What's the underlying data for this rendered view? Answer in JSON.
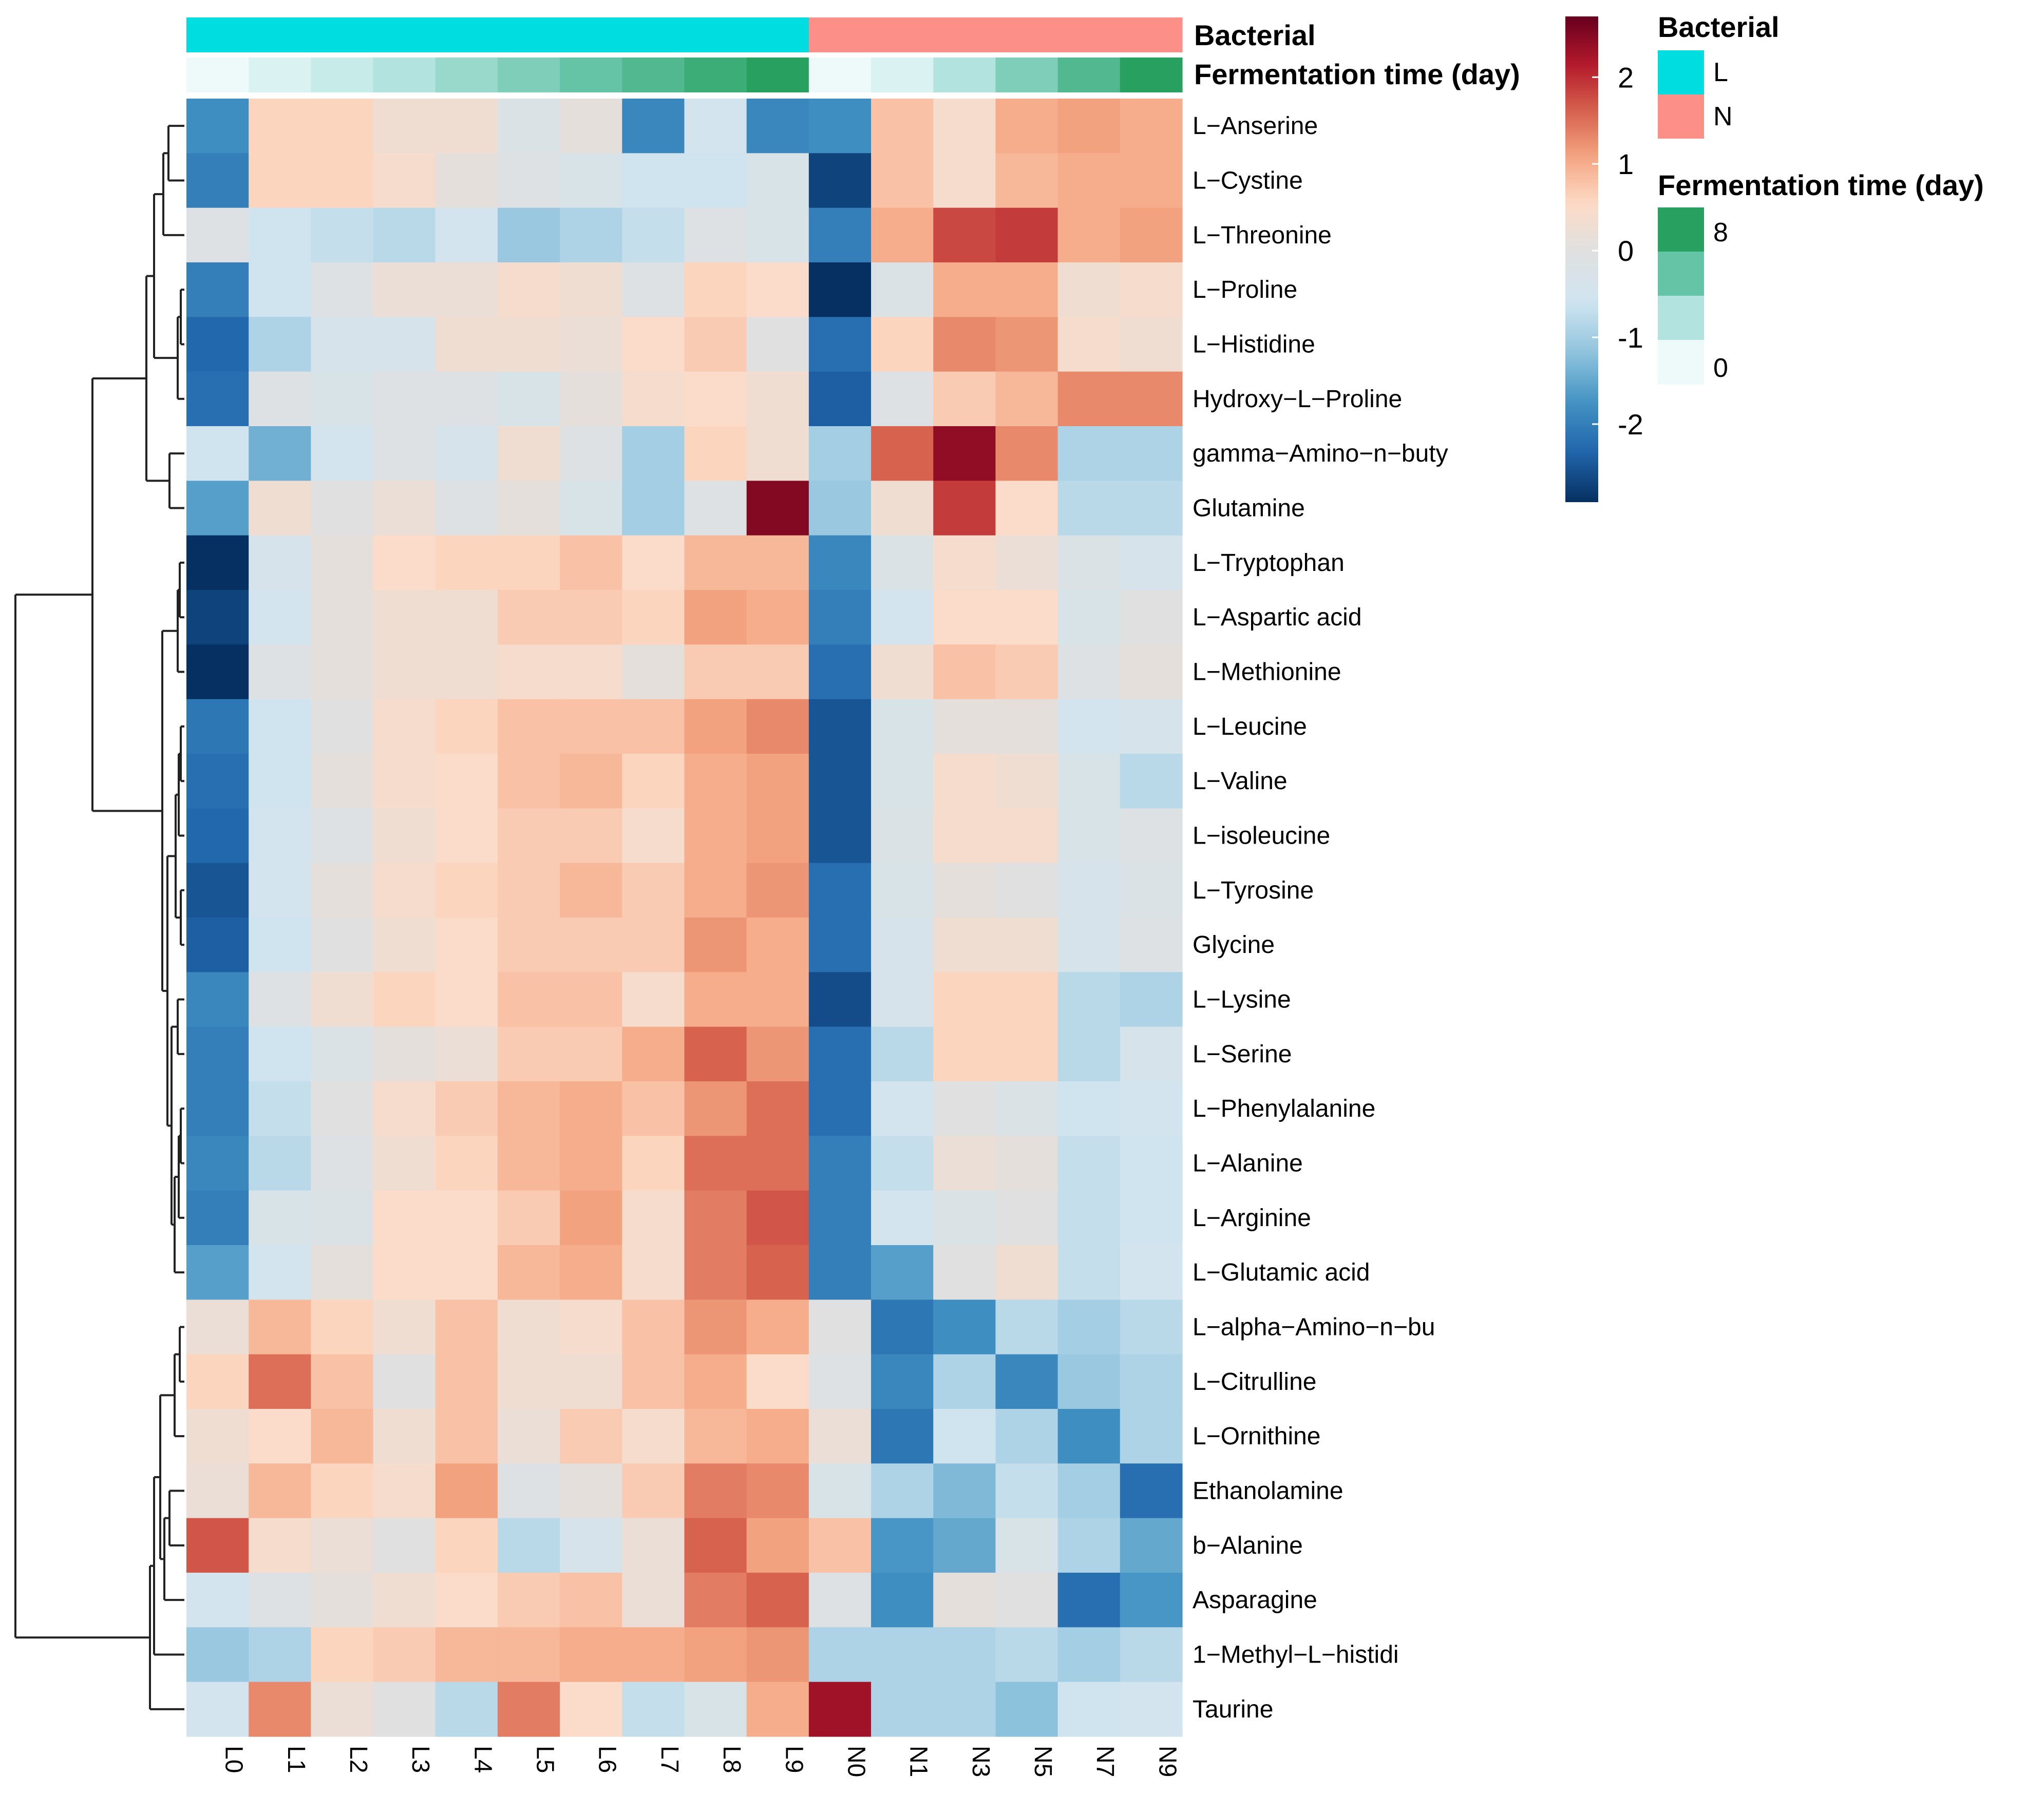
{
  "chart_data": {
    "type": "heatmap",
    "columns": [
      "L0",
      "L1",
      "L2",
      "L3",
      "L4",
      "L5",
      "L6",
      "L7",
      "L8",
      "L9",
      "N0",
      "N1",
      "N3",
      "N5",
      "N7",
      "N9"
    ],
    "rows": [
      "L−Anserine",
      "L−Cystine",
      "L−Threonine",
      "L−Proline",
      "L−Histidine",
      "Hydroxy−L−Proline",
      "gamma−Amino−n−buty",
      "Glutamine",
      "L−Tryptophan",
      "L−Aspartic acid",
      "L−Methionine",
      "L−Leucine",
      "L−Valine",
      "L−isoleucine",
      "L−Tyrosine",
      "Glycine",
      "L−Lysine",
      "L−Serine",
      "L−Phenylalanine",
      "L−Alanine",
      "L−Arginine",
      "L−Glutamic acid",
      "L−alpha−Amino−n−bu",
      "L−Citrulline",
      "L−Ornithine",
      "Ethanolamine",
      "b−Alanine",
      "Asparagine",
      "1−Methyl−L−histidi",
      "Taurine"
    ],
    "values": [
      [
        -1.8,
        0.6,
        0.6,
        0.3,
        0.3,
        -0.2,
        0.1,
        -1.9,
        -0.5,
        -1.9,
        -1.8,
        0.8,
        0.4,
        1.0,
        1.1,
        1.0
      ],
      [
        -2.0,
        0.6,
        0.6,
        0.4,
        0.1,
        -0.1,
        -0.3,
        -0.6,
        -0.6,
        -0.3,
        -2.7,
        0.8,
        0.4,
        0.9,
        1.0,
        1.0
      ],
      [
        -0.1,
        -0.6,
        -0.7,
        -0.8,
        -0.5,
        -1.1,
        -0.9,
        -0.7,
        -0.1,
        -0.3,
        -2.0,
        1.0,
        1.8,
        1.9,
        1.0,
        1.1
      ],
      [
        -2.0,
        -0.6,
        -0.1,
        0.2,
        0.2,
        0.4,
        0.3,
        -0.1,
        0.6,
        0.5,
        -2.9,
        -0.2,
        1.0,
        1.0,
        0.3,
        0.4
      ],
      [
        -2.3,
        -0.9,
        -0.4,
        -0.4,
        0.3,
        0.3,
        0.2,
        0.5,
        0.7,
        0.0,
        -2.2,
        0.6,
        1.3,
        1.2,
        0.4,
        0.3
      ],
      [
        -2.2,
        -0.1,
        -0.3,
        -0.1,
        -0.1,
        -0.3,
        0.1,
        0.4,
        0.5,
        0.3,
        -2.4,
        -0.1,
        0.7,
        0.9,
        1.3,
        1.3
      ],
      [
        -0.6,
        -1.4,
        -0.5,
        -0.1,
        -0.4,
        0.3,
        -0.1,
        -1.0,
        0.6,
        0.3,
        -1.0,
        1.6,
        2.4,
        1.3,
        -0.9,
        -0.9
      ],
      [
        -1.6,
        0.3,
        0.0,
        0.2,
        -0.1,
        0.1,
        -0.3,
        -1.0,
        -0.1,
        2.5,
        -1.1,
        0.3,
        1.9,
        0.5,
        -0.8,
        -0.8
      ],
      [
        -2.9,
        -0.4,
        0.1,
        0.5,
        0.6,
        0.6,
        0.8,
        0.5,
        0.9,
        0.9,
        -1.9,
        -0.2,
        0.4,
        0.2,
        -0.2,
        -0.4
      ],
      [
        -2.7,
        -0.5,
        0.1,
        0.3,
        0.3,
        0.7,
        0.7,
        0.6,
        1.1,
        1.0,
        -2.0,
        -0.5,
        0.5,
        0.5,
        -0.3,
        0.0
      ],
      [
        -2.9,
        -0.1,
        0.1,
        0.3,
        0.3,
        0.4,
        0.4,
        0.1,
        0.7,
        0.7,
        -2.2,
        0.3,
        0.8,
        0.7,
        -0.1,
        0.1
      ],
      [
        -2.1,
        -0.6,
        0.0,
        0.4,
        0.6,
        0.8,
        0.8,
        0.8,
        1.1,
        1.3,
        -2.5,
        -0.3,
        0.1,
        0.1,
        -0.5,
        -0.4
      ],
      [
        -2.2,
        -0.6,
        0.1,
        0.4,
        0.5,
        0.8,
        0.9,
        0.6,
        1.0,
        1.1,
        -2.5,
        -0.3,
        0.4,
        0.3,
        -0.3,
        -0.8
      ],
      [
        -2.3,
        -0.5,
        -0.1,
        0.3,
        0.5,
        0.7,
        0.7,
        0.4,
        1.0,
        1.1,
        -2.5,
        -0.2,
        0.4,
        0.4,
        -0.3,
        -0.1
      ],
      [
        -2.5,
        -0.5,
        0.1,
        0.4,
        0.6,
        0.7,
        0.9,
        0.7,
        1.0,
        1.2,
        -2.2,
        -0.3,
        0.1,
        0.0,
        -0.4,
        -0.2
      ],
      [
        -2.4,
        -0.6,
        0.0,
        0.3,
        0.5,
        0.7,
        0.7,
        0.7,
        1.2,
        1.0,
        -2.2,
        -0.4,
        0.3,
        0.3,
        -0.4,
        -0.1
      ],
      [
        -1.9,
        -0.1,
        0.3,
        0.6,
        0.5,
        0.8,
        0.8,
        0.4,
        1.0,
        1.0,
        -2.6,
        -0.4,
        0.6,
        0.6,
        -0.8,
        -0.9
      ],
      [
        -2.0,
        -0.6,
        -0.2,
        0.1,
        0.2,
        0.7,
        0.7,
        1.0,
        1.6,
        1.2,
        -2.2,
        -0.8,
        0.6,
        0.6,
        -0.8,
        -0.4
      ],
      [
        -2.0,
        -0.7,
        0.0,
        0.4,
        0.7,
        0.9,
        1.0,
        0.8,
        1.2,
        1.5,
        -2.2,
        -0.5,
        0.0,
        -0.2,
        -0.6,
        -0.5
      ],
      [
        -1.9,
        -0.8,
        -0.1,
        0.3,
        0.6,
        0.9,
        1.0,
        0.6,
        1.5,
        1.5,
        -2.0,
        -0.7,
        0.2,
        0.1,
        -0.7,
        -0.6
      ],
      [
        -2.0,
        -0.3,
        -0.2,
        0.5,
        0.5,
        0.7,
        1.1,
        0.4,
        1.4,
        1.7,
        -2.0,
        -0.5,
        -0.2,
        0.0,
        -0.7,
        -0.6
      ],
      [
        -1.6,
        -0.5,
        0.1,
        0.5,
        0.5,
        0.9,
        1.0,
        0.4,
        1.4,
        1.6,
        -2.0,
        -1.6,
        0.0,
        0.3,
        -0.7,
        -0.5
      ],
      [
        0.2,
        0.9,
        0.6,
        0.3,
        0.8,
        0.3,
        0.4,
        0.8,
        1.2,
        1.0,
        0.0,
        -2.1,
        -1.8,
        -0.8,
        -1.0,
        -0.8
      ],
      [
        0.6,
        1.5,
        0.8,
        0.0,
        0.8,
        0.3,
        0.3,
        0.8,
        1.0,
        0.5,
        -0.1,
        -1.9,
        -0.9,
        -1.9,
        -1.1,
        -0.9
      ],
      [
        0.3,
        0.5,
        0.9,
        0.3,
        0.8,
        0.2,
        0.7,
        0.4,
        0.9,
        1.0,
        0.2,
        -2.1,
        -0.6,
        -0.9,
        -1.8,
        -0.9
      ],
      [
        0.2,
        0.9,
        0.6,
        0.4,
        1.1,
        -0.1,
        0.1,
        0.7,
        1.4,
        1.3,
        -0.3,
        -0.9,
        -1.3,
        -0.7,
        -1.0,
        -2.2
      ],
      [
        1.7,
        0.4,
        0.2,
        0.0,
        0.6,
        -0.8,
        -0.4,
        0.2,
        1.6,
        1.1,
        0.8,
        -1.7,
        -1.5,
        -0.3,
        -0.9,
        -1.5
      ],
      [
        -0.5,
        -0.1,
        0.1,
        0.3,
        0.5,
        0.7,
        0.8,
        0.2,
        1.4,
        1.6,
        -0.1,
        -1.8,
        0.1,
        0.0,
        -2.2,
        -1.7
      ],
      [
        -1.1,
        -0.9,
        0.6,
        0.7,
        0.9,
        0.9,
        1.0,
        1.0,
        1.1,
        1.2,
        -0.9,
        -0.9,
        -0.9,
        -0.8,
        -1.0,
        -0.8
      ],
      [
        -0.5,
        1.3,
        0.2,
        0.0,
        -0.8,
        1.4,
        0.5,
        -0.7,
        -0.3,
        1.0,
        2.3,
        -0.9,
        -0.9,
        -1.2,
        -0.6,
        -0.5
      ]
    ],
    "color_scale": {
      "range": [
        -2.9,
        2.7
      ],
      "ticks": [
        2,
        1,
        0,
        -1,
        -2
      ],
      "colors": [
        "#053061",
        "#2166ac",
        "#4393c3",
        "#92c5de",
        "#d1e5f0",
        "#e0e0e0",
        "#fddbc7",
        "#f4a582",
        "#d6604d",
        "#b2182b",
        "#67001f"
      ]
    },
    "annotations": {
      "bacterial": {
        "title": "Bacterial",
        "values": [
          "L",
          "L",
          "L",
          "L",
          "L",
          "L",
          "L",
          "L",
          "L",
          "L",
          "N",
          "N",
          "N",
          "N",
          "N",
          "N"
        ],
        "legend": [
          {
            "label": "L",
            "color": "#00dde0"
          },
          {
            "label": "N",
            "color": "#fc8f88"
          }
        ]
      },
      "fermentation_time": {
        "title": "Fermentation time (day)",
        "values": [
          0,
          1,
          2,
          3,
          4,
          5,
          6,
          7,
          8,
          9,
          0,
          1,
          3,
          5,
          7,
          9
        ],
        "range": [
          0,
          9
        ],
        "legend_labels": [
          "8",
          "0"
        ],
        "colors": [
          "#eefafa",
          "#b3e3df",
          "#65c4a6",
          "#28a160"
        ]
      }
    },
    "row_dendrogram": true
  }
}
